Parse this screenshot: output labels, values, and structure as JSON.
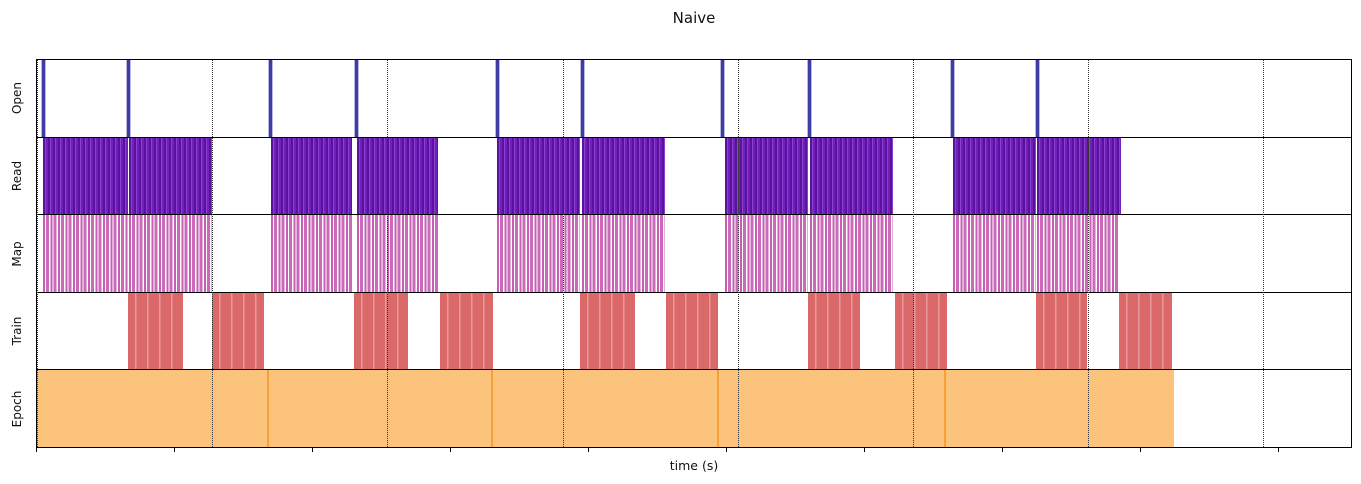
{
  "chart_data": {
    "type": "timeline",
    "title": "Naive",
    "xlabel": "time (s)",
    "ylabel": "",
    "x_axis": {
      "tick_labels_visible": false,
      "ticks_pct": [
        0,
        10.49,
        20.98,
        31.47,
        41.96,
        52.45,
        62.94,
        73.43,
        83.92,
        94.41
      ],
      "gridlines_pct": [
        0,
        13.33,
        26.67,
        40.0,
        53.33,
        66.67,
        80.0,
        93.33
      ],
      "gridline_style": "dotted"
    },
    "legend": "none",
    "colors": {
      "open": "#3d3da4",
      "read": "#6f21ba",
      "map": "#c75fb5",
      "train": "#dc6c6c",
      "epoch": "#fcc37d",
      "epoch_seam": "#f89f35",
      "grid": "#333333"
    },
    "rows": [
      {
        "label": "Open",
        "style": "spikes",
        "spikes_pct": [
          0.46,
          6.99,
          17.78,
          24.32,
          35.03,
          41.49,
          52.2,
          58.81,
          69.68,
          76.14
        ]
      },
      {
        "label": "Read",
        "style": "dense-purple-stripes",
        "blocks_pct": [
          [
            0.46,
            6.91
          ],
          [
            6.99,
            13.3
          ],
          [
            17.78,
            24.01
          ],
          [
            24.32,
            30.55
          ],
          [
            35.03,
            41.34
          ],
          [
            41.49,
            47.8
          ],
          [
            52.36,
            58.66
          ],
          [
            58.81,
            65.12
          ],
          [
            69.68,
            75.99
          ],
          [
            76.14,
            82.52
          ]
        ]
      },
      {
        "label": "Map",
        "style": "sparse-orchid-stripes",
        "blocks_pct": [
          [
            0.46,
            6.91
          ],
          [
            6.99,
            13.3
          ],
          [
            17.78,
            24.01
          ],
          [
            24.32,
            30.55
          ],
          [
            35.03,
            41.34
          ],
          [
            41.49,
            47.8
          ],
          [
            52.36,
            58.66
          ],
          [
            58.81,
            65.12
          ],
          [
            69.68,
            75.99
          ],
          [
            76.14,
            82.29
          ]
        ]
      },
      {
        "label": "Train",
        "style": "red-blocks",
        "blocks_pct": [
          [
            6.91,
            11.09
          ],
          [
            13.3,
            17.25
          ],
          [
            24.09,
            28.27
          ],
          [
            30.7,
            34.73
          ],
          [
            41.34,
            45.52
          ],
          [
            47.87,
            51.82
          ],
          [
            58.66,
            62.61
          ],
          [
            65.27,
            69.22
          ],
          [
            75.99,
            79.94
          ],
          [
            82.37,
            86.4
          ]
        ]
      },
      {
        "label": "Epoch",
        "style": "solid-orange-segments",
        "blocks_pct": [
          [
            0.0,
            17.55
          ],
          [
            17.55,
            34.65
          ],
          [
            34.65,
            51.82
          ],
          [
            51.82,
            69.07
          ],
          [
            69.07,
            86.55
          ]
        ]
      }
    ]
  }
}
